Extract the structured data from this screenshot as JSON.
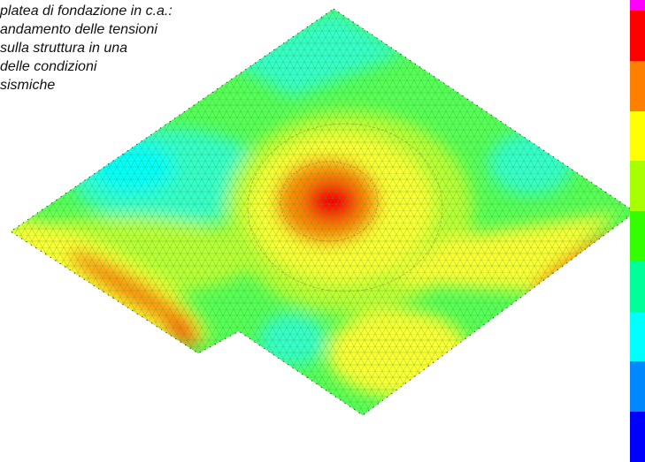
{
  "caption": {
    "lines": [
      "platea di fondazione in c.a.:",
      "andamento delle tensioni",
      "sulla struttura in una",
      "delle condizioni",
      "sismiche"
    ]
  },
  "legend": {
    "colors": [
      "#ff00ff",
      "#ff0000",
      "#ff7f00",
      "#ffff00",
      "#a8ff00",
      "#33ff00",
      "#00ff99",
      "#00ffff",
      "#0088ff",
      "#0000ff"
    ]
  },
  "field_colors": {
    "cyan": "#00ffff",
    "teal": "#33ffcc",
    "green": "#55ff55",
    "lime": "#bbff33",
    "yellow": "#ffff33",
    "orange": "#ff8800",
    "red": "#ff0000",
    "mesh": "#44aa44"
  }
}
